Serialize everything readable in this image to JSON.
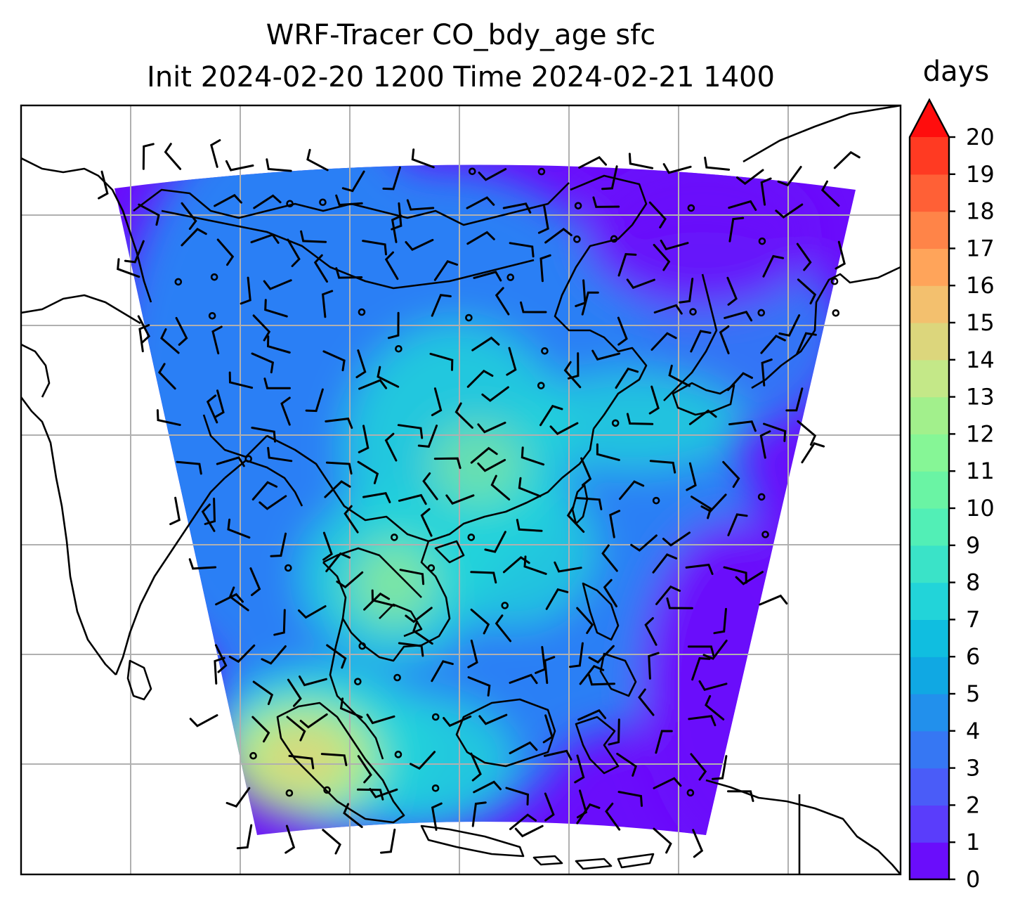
{
  "title": {
    "line1": "WRF-Tracer CO_bdy_age sfc",
    "line2": "Init 2024-02-20 1200 Time 2024-02-21 1400"
  },
  "colorbar": {
    "unit_label": "days",
    "min": 0,
    "max": 20,
    "extend": "max",
    "tick_labels": [
      "0",
      "1",
      "2",
      "3",
      "4",
      "5",
      "6",
      "7",
      "8",
      "9",
      "10",
      "11",
      "12",
      "13",
      "14",
      "15",
      "16",
      "17",
      "18",
      "19",
      "20"
    ],
    "colors": [
      "#6a0dfb",
      "#5a3dfb",
      "#4a5cf8",
      "#3677f3",
      "#2290ec",
      "#10a8e3",
      "#10bee0",
      "#22d4d9",
      "#3ae3c8",
      "#52efb6",
      "#6af4a4",
      "#86f696",
      "#a2f08c",
      "#c4e888",
      "#dcd67c",
      "#f3c06e",
      "#ffa45a",
      "#ff8448",
      "#ff6036",
      "#ff3a22"
    ],
    "extend_color": "#ff0d0d"
  },
  "map": {
    "field": "CO_bdy_age",
    "level": "sfc",
    "gridlines": true,
    "features": [
      "coastlines",
      "country borders",
      "wind barbs"
    ],
    "field_colors": {
      "low": "#6a0dfb",
      "mid": "#2c7ff5",
      "high": "#22d4d9",
      "peak": "#a2f08c",
      "peak2": "#dcd67c"
    }
  }
}
